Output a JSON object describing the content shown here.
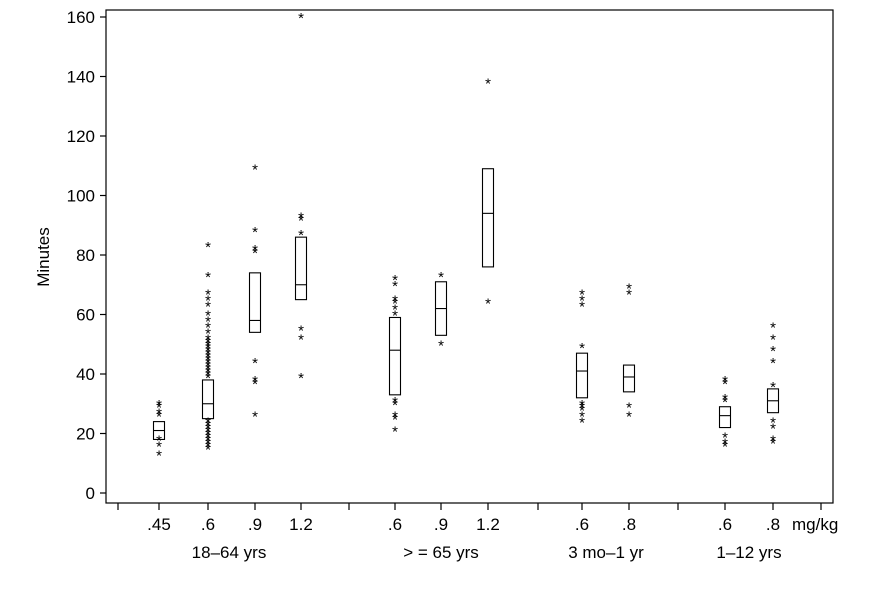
{
  "chart_data": {
    "type": "box",
    "ylabel": "Minutes",
    "unit_label": "mg/kg",
    "ylim": [
      0,
      160
    ],
    "yticks": [
      "0",
      "20",
      "40",
      "60",
      "80",
      "100",
      "120",
      "140",
      "160"
    ],
    "grid": false,
    "groups": [
      {
        "label": "18–64 yrs"
      },
      {
        "label": "> = 65 yrs"
      },
      {
        "label": "3 mo–1 yr"
      },
      {
        "label": "1–12 yrs"
      }
    ],
    "boxes": [
      {
        "group": 0,
        "dose": ".45",
        "q1": 18,
        "median": 21,
        "q3": 24,
        "outliers": [
          13,
          16,
          18,
          26,
          27,
          29,
          30
        ]
      },
      {
        "group": 0,
        "dose": ".6",
        "q1": 25,
        "median": 30,
        "q3": 38,
        "outliers": [
          15,
          16,
          17,
          18,
          19,
          20,
          21,
          22,
          23,
          24,
          39,
          40,
          41,
          42,
          43,
          44,
          45,
          46,
          47,
          48,
          49,
          50,
          51,
          52,
          54,
          56,
          58,
          60,
          63,
          65,
          67,
          73,
          83
        ]
      },
      {
        "group": 0,
        "dose": ".9",
        "q1": 54,
        "median": 58,
        "q3": 74,
        "outliers": [
          26,
          37,
          38,
          44,
          81,
          82,
          88,
          109
        ]
      },
      {
        "group": 0,
        "dose": "1.2",
        "q1": 65,
        "median": 70,
        "q3": 86,
        "outliers": [
          39,
          52,
          55,
          87,
          92,
          93,
          160
        ]
      },
      {
        "group": 1,
        "dose": ".6",
        "q1": 33,
        "median": 48,
        "q3": 59,
        "outliers": [
          21,
          25,
          26,
          30,
          31,
          60,
          62,
          64,
          65,
          70,
          72
        ]
      },
      {
        "group": 1,
        "dose": ".9",
        "q1": 53,
        "median": 62,
        "q3": 71,
        "outliers": [
          50,
          73
        ]
      },
      {
        "group": 1,
        "dose": "1.2",
        "q1": 76,
        "median": 94,
        "q3": 109,
        "outliers": [
          64,
          138
        ]
      },
      {
        "group": 2,
        "dose": ".6",
        "q1": 32,
        "median": 41,
        "q3": 47,
        "outliers": [
          24,
          26,
          28,
          29,
          30,
          49,
          63,
          65,
          67
        ]
      },
      {
        "group": 2,
        "dose": ".8",
        "q1": 34,
        "median": 39,
        "q3": 43,
        "outliers": [
          26,
          29,
          67,
          69
        ]
      },
      {
        "group": 3,
        "dose": ".6",
        "q1": 22,
        "median": 26,
        "q3": 29,
        "outliers": [
          16,
          17,
          19,
          31,
          32,
          37,
          38
        ]
      },
      {
        "group": 3,
        "dose": ".8",
        "q1": 27,
        "median": 31,
        "q3": 35,
        "outliers": [
          17,
          18,
          22,
          24,
          36,
          44,
          48,
          52,
          56
        ]
      }
    ]
  }
}
